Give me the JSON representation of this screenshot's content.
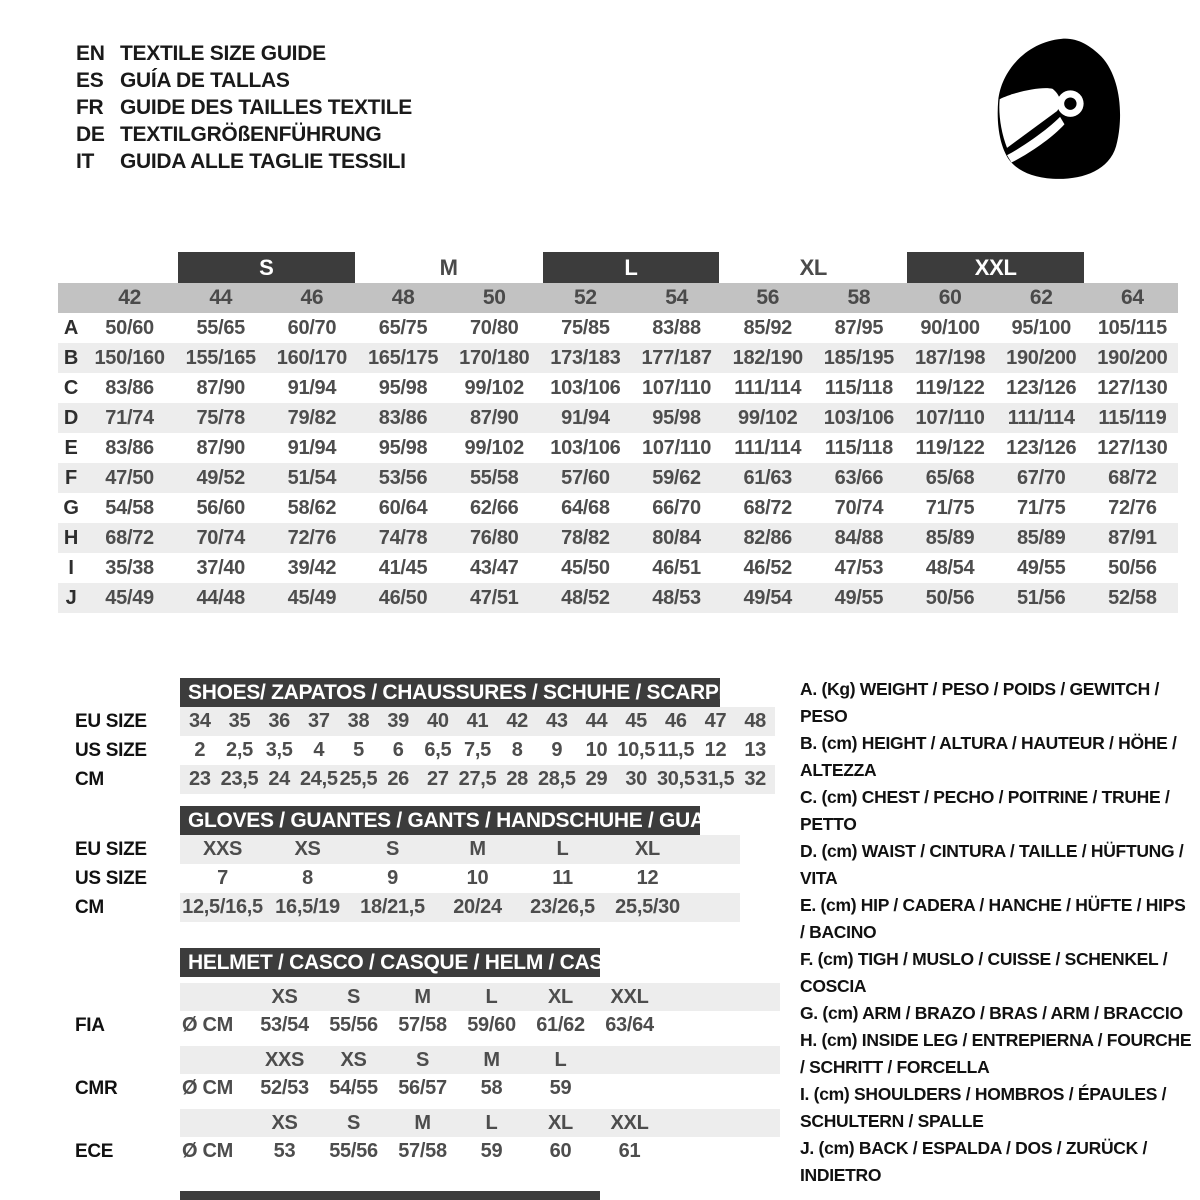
{
  "header": {
    "languages": [
      {
        "code": "EN",
        "title": "TEXTILE SIZE GUIDE"
      },
      {
        "code": "ES",
        "title": "GUÍA DE TALLAS"
      },
      {
        "code": "FR",
        "title": "GUIDE DES TAILLES TEXTILE"
      },
      {
        "code": "DE",
        "title": "TEXTILGRÖßENFÜHRUNG"
      },
      {
        "code": "IT",
        "title": "GUIDA ALLE TAGLIE TESSILI"
      }
    ],
    "icon": "full-face-racing-helmet"
  },
  "colors": {
    "dark_bar": "#3c3c3c",
    "column_band": "#c2c2c2",
    "stripe": "#ededed",
    "value_text": "#4d4d4d"
  },
  "main_table": {
    "size_groups": [
      {
        "label": "S",
        "dark": true
      },
      {
        "label": "M",
        "dark": false
      },
      {
        "label": "L",
        "dark": true
      },
      {
        "label": "XL",
        "dark": false
      },
      {
        "label": "XXL",
        "dark": true
      }
    ],
    "columns": [
      "42",
      "44",
      "46",
      "48",
      "50",
      "52",
      "54",
      "56",
      "58",
      "60",
      "62",
      "64"
    ],
    "rows": [
      {
        "label": "A",
        "values": [
          "50/60",
          "55/65",
          "60/70",
          "65/75",
          "70/80",
          "75/85",
          "83/88",
          "85/92",
          "87/95",
          "90/100",
          "95/100",
          "105/115"
        ]
      },
      {
        "label": "B",
        "values": [
          "150/160",
          "155/165",
          "160/170",
          "165/175",
          "170/180",
          "173/183",
          "177/187",
          "182/190",
          "185/195",
          "187/198",
          "190/200",
          "190/200"
        ]
      },
      {
        "label": "C",
        "values": [
          "83/86",
          "87/90",
          "91/94",
          "95/98",
          "99/102",
          "103/106",
          "107/110",
          "111/114",
          "115/118",
          "119/122",
          "123/126",
          "127/130"
        ]
      },
      {
        "label": "D",
        "values": [
          "71/74",
          "75/78",
          "79/82",
          "83/86",
          "87/90",
          "91/94",
          "95/98",
          "99/102",
          "103/106",
          "107/110",
          "111/114",
          "115/119"
        ]
      },
      {
        "label": "E",
        "values": [
          "83/86",
          "87/90",
          "91/94",
          "95/98",
          "99/102",
          "103/106",
          "107/110",
          "111/114",
          "115/118",
          "119/122",
          "123/126",
          "127/130"
        ]
      },
      {
        "label": "F",
        "values": [
          "47/50",
          "49/52",
          "51/54",
          "53/56",
          "55/58",
          "57/60",
          "59/62",
          "61/63",
          "63/66",
          "65/68",
          "67/70",
          "68/72"
        ]
      },
      {
        "label": "G",
        "values": [
          "54/58",
          "56/60",
          "58/62",
          "60/64",
          "62/66",
          "64/68",
          "66/70",
          "68/72",
          "70/74",
          "71/75",
          "71/75",
          "72/76"
        ]
      },
      {
        "label": "H",
        "values": [
          "68/72",
          "70/74",
          "72/76",
          "74/78",
          "76/80",
          "78/82",
          "80/84",
          "82/86",
          "84/88",
          "85/89",
          "85/89",
          "87/91"
        ]
      },
      {
        "label": "I",
        "values": [
          "35/38",
          "37/40",
          "39/42",
          "41/45",
          "43/47",
          "45/50",
          "46/51",
          "46/52",
          "47/53",
          "48/54",
          "49/55",
          "50/56"
        ]
      },
      {
        "label": "J",
        "values": [
          "45/49",
          "44/48",
          "45/49",
          "46/50",
          "47/51",
          "48/52",
          "48/53",
          "49/54",
          "49/55",
          "50/56",
          "51/56",
          "52/58"
        ]
      }
    ]
  },
  "shoes": {
    "title": "SHOES/ ZAPATOS / CHAUSSURES / SCHUHE / SCARPE",
    "rows": [
      {
        "label": "EU SIZE",
        "striped": true,
        "values": [
          "34",
          "35",
          "36",
          "37",
          "38",
          "39",
          "40",
          "41",
          "42",
          "43",
          "44",
          "45",
          "46",
          "47",
          "48"
        ]
      },
      {
        "label": "US SIZE",
        "striped": false,
        "values": [
          "2",
          "2,5",
          "3,5",
          "4",
          "5",
          "6",
          "6,5",
          "7,5",
          "8",
          "9",
          "10",
          "10,5",
          "11,5",
          "12",
          "13"
        ]
      },
      {
        "label": "CM",
        "striped": true,
        "values": [
          "23",
          "23,5",
          "24",
          "24,5",
          "25,5",
          "26",
          "27",
          "27,5",
          "28",
          "28,5",
          "29",
          "30",
          "30,5",
          "31,5",
          "32"
        ]
      }
    ]
  },
  "gloves": {
    "title": "GLOVES / GUANTES / GANTS / HANDSCHUHE / GUANTI",
    "rows": [
      {
        "label": "EU SIZE",
        "striped": true,
        "values": [
          "XXS",
          "XS",
          "S",
          "M",
          "L",
          "XL"
        ]
      },
      {
        "label": "US SIZE",
        "striped": false,
        "values": [
          "7",
          "8",
          "9",
          "10",
          "11",
          "12"
        ]
      },
      {
        "label": "CM",
        "striped": true,
        "values": [
          "12,5/16,5",
          "16,5/19",
          "18/21,5",
          "20/24",
          "23/26,5",
          "25,5/30"
        ]
      }
    ]
  },
  "helmet": {
    "title": "HELMET / CASCO / CASQUE / HELM / CASCO",
    "standards": [
      {
        "label": "FIA",
        "unit": "Ø CM",
        "sizes": [
          "XS",
          "S",
          "M",
          "L",
          "XL",
          "XXL"
        ],
        "values": [
          "53/54",
          "55/56",
          "57/58",
          "59/60",
          "61/62",
          "63/64"
        ]
      },
      {
        "label": "CMR",
        "unit": "Ø CM",
        "sizes": [
          "XXS",
          "XS",
          "S",
          "M",
          "L"
        ],
        "values": [
          "52/53",
          "54/55",
          "56/57",
          "58",
          "59"
        ]
      },
      {
        "label": "ECE",
        "unit": "Ø CM",
        "sizes": [
          "XS",
          "S",
          "M",
          "L",
          "XL",
          "XXL"
        ],
        "values": [
          "53",
          "55/56",
          "57/58",
          "59",
          "60",
          "61"
        ]
      }
    ]
  },
  "legend": {
    "items": [
      "A. (Kg) WEIGHT / PESO / POIDS / GEWITCH / PESO",
      "B. (cm) HEIGHT / ALTURA / HAUTEUR / HÖHE / ALTEZZA",
      "C. (cm) CHEST / PECHO / POITRINE / TRUHE / PETTO",
      "D. (cm) WAIST / CINTURA / TAILLE / HÜFTUNG / VITA",
      "E. (cm) HIP / CADERA / HANCHE / HÜFTE / HIPS / BACINO",
      "F. (cm) TIGH / MUSLO / CUISSE / SCHENKEL / COSCIA",
      "G. (cm) ARM / BRAZO / BRAS / ARM / BRACCIO",
      "H. (cm) INSIDE LEG / ENTREPIERNA / FOURCHE / SCHRITT / FORCELLA",
      "I. (cm) SHOULDERS / HOMBROS / ÉPAULES / SCHULTERN / SPALLE",
      "J. (cm) BACK / ESPALDA / DOS / ZURÜCK / INDIETRO"
    ]
  }
}
